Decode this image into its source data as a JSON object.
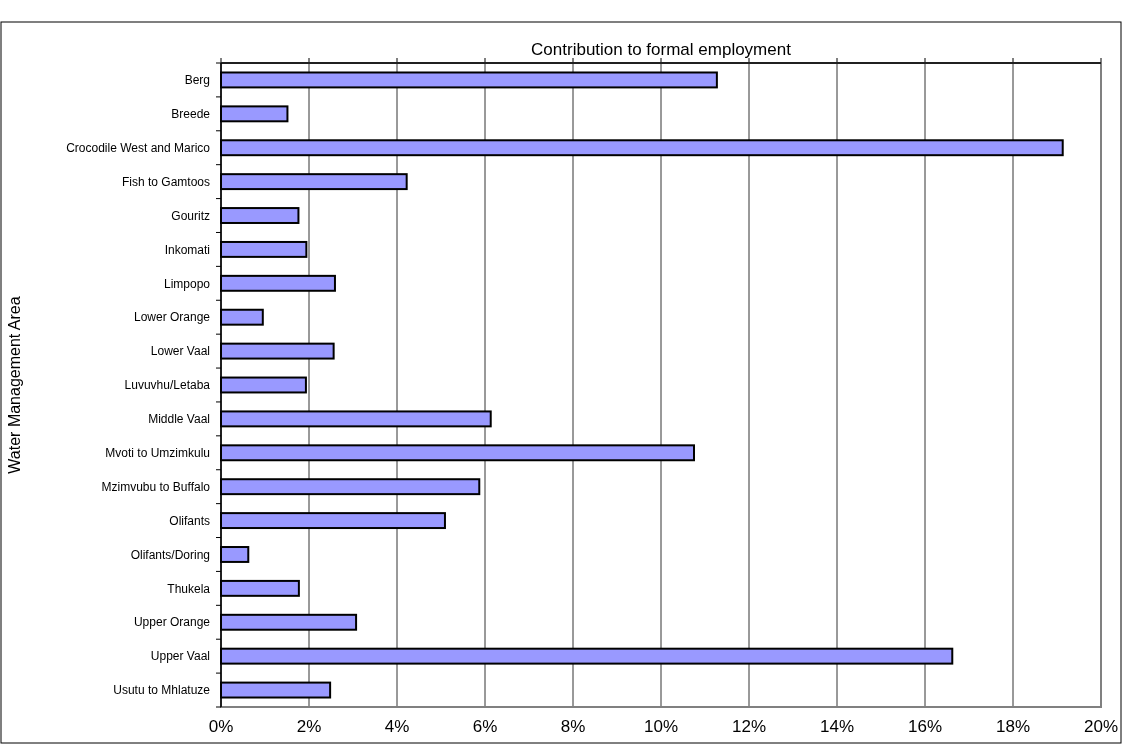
{
  "chart_data": {
    "type": "bar",
    "orientation": "horizontal",
    "title": "Contribution to formal employment",
    "ylabel": "Water Management Area",
    "categories": [
      "Berg",
      "Breede",
      "Crocodile West and Marico",
      "Fish to Gamtoos",
      "Gouritz",
      "Inkomati",
      "Limpopo",
      "Lower Orange",
      "Lower Vaal",
      "Luvuvhu/Letaba",
      "Middle Vaal",
      "Mvoti to Umzimkulu",
      "Mzimvubu to Buffalo",
      "Olifants",
      "Olifants/Doring",
      "Thukela",
      "Upper Orange",
      "Upper Vaal",
      "Usutu to Mhlatuze"
    ],
    "values": [
      11.27,
      1.51,
      19.13,
      4.22,
      1.76,
      1.94,
      2.59,
      0.95,
      2.56,
      1.93,
      6.13,
      10.75,
      5.87,
      5.09,
      0.62,
      1.77,
      3.07,
      16.62,
      2.48
    ],
    "color": "#9999ff",
    "xlim": [
      0,
      20
    ],
    "xticks": [
      {
        "value": 0,
        "label": "0%"
      },
      {
        "value": 2,
        "label": "2%"
      },
      {
        "value": 4,
        "label": "4%"
      },
      {
        "value": 6,
        "label": "6%"
      },
      {
        "value": 8,
        "label": "8%"
      },
      {
        "value": 10,
        "label": "10%"
      },
      {
        "value": 12,
        "label": "12%"
      },
      {
        "value": 14,
        "label": "14%"
      },
      {
        "value": 16,
        "label": "16%"
      },
      {
        "value": 18,
        "label": "18%"
      },
      {
        "value": 20,
        "label": "20%"
      }
    ],
    "grid": "x"
  }
}
